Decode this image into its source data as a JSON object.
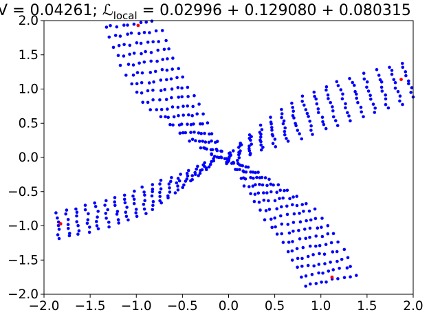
{
  "chart_data": {
    "type": "scatter",
    "title": "V = 0.04261; ℒ",
    "title_sub": "local",
    "title_rest": " = 0.02996 + 0.129080 + 0.080315",
    "xlim": [
      -2.0,
      2.0
    ],
    "ylim": [
      -2.0,
      2.0
    ],
    "x_ticks": [
      -2.0,
      -1.5,
      -1.0,
      -0.5,
      0.0,
      0.5,
      1.0,
      1.5,
      2.0
    ],
    "y_ticks": [
      -2.0,
      -1.5,
      -1.0,
      -0.5,
      0.0,
      0.5,
      1.0,
      1.5,
      2.0
    ],
    "x_tick_labels": [
      "−2.0",
      "−1.5",
      "−1.0",
      "−0.5",
      "0.0",
      "0.5",
      "1.0",
      "1.5",
      "2.0"
    ],
    "y_tick_labels": [
      "−2.0",
      "−1.5",
      "−1.0",
      "−0.5",
      "0.0",
      "0.5",
      "1.0",
      "1.5",
      "2.0"
    ],
    "grid": false,
    "colors": {
      "points": "#0000ff",
      "highlight": "#ff0000",
      "axis": "#000000"
    },
    "arms": [
      {
        "from": [
          -0.1,
          0.0
        ],
        "to": [
          -1.05,
          1.95
        ],
        "width": 0.55,
        "rows": 10,
        "cols": 16
      },
      {
        "from": [
          0.0,
          0.0
        ],
        "to": [
          1.95,
          1.1
        ],
        "width": 0.55,
        "rows": 10,
        "cols": 16
      },
      {
        "from": [
          0.1,
          -0.1
        ],
        "to": [
          1.1,
          -1.8
        ],
        "width": 0.55,
        "rows": 10,
        "cols": 16
      },
      {
        "from": [
          -0.2,
          -0.1
        ],
        "to": [
          -1.85,
          -1.0
        ],
        "width": 0.35,
        "rows": 7,
        "cols": 18
      }
    ],
    "highlight_points": [
      {
        "x": -0.98,
        "y": 1.93
      },
      {
        "x": 1.87,
        "y": 1.14
      },
      {
        "x": 1.12,
        "y": -1.75
      },
      {
        "x": -1.82,
        "y": -0.97
      }
    ]
  }
}
